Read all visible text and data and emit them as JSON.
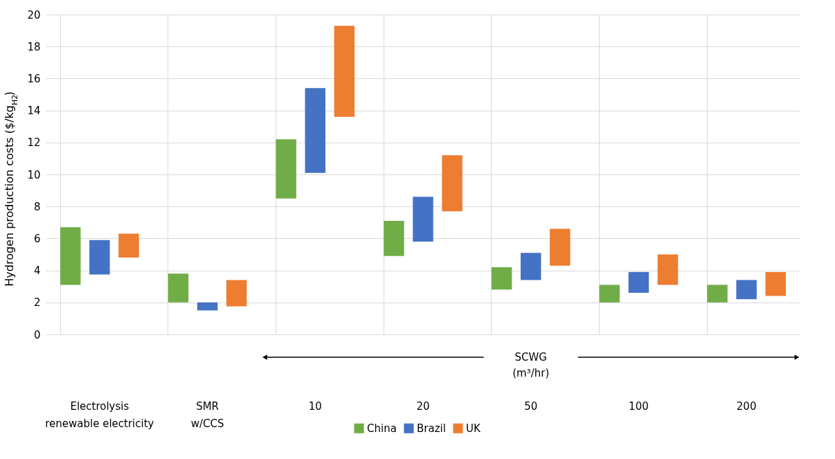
{
  "chart_data": {
    "type": "bar",
    "ylabel": "Hydrogen production costs ($/kg$_{H2}$)",
    "categories": [
      "Electrolysis renewable electricity",
      "SMR w/CCS",
      "10",
      "20",
      "50",
      "100",
      "200"
    ],
    "series": [
      {
        "name": "China",
        "color": "#70ad47",
        "base": [
          3.1,
          2.0,
          8.5,
          4.9,
          2.8,
          2.0,
          2.0
        ],
        "values": [
          3.6,
          1.8,
          3.7,
          2.2,
          1.4,
          1.1,
          1.1
        ]
      },
      {
        "name": "Brazil",
        "color": "#4472c4",
        "base": [
          3.75,
          1.5,
          10.1,
          5.8,
          3.4,
          2.6,
          2.2
        ],
        "values": [
          2.15,
          0.5,
          5.3,
          2.8,
          1.7,
          1.3,
          1.2
        ]
      },
      {
        "name": "UK",
        "color": "#ed7d31",
        "base": [
          4.8,
          1.75,
          13.6,
          7.7,
          4.3,
          3.1,
          2.4
        ],
        "values": [
          1.5,
          1.65,
          5.7,
          3.5,
          2.3,
          1.9,
          1.5
        ]
      }
    ],
    "annotations": [
      "SCWG (m³/hr)"
    ],
    "ylim": [
      0,
      20
    ],
    "yticks": [
      0,
      2,
      4,
      6,
      8,
      10,
      12,
      14,
      16,
      18,
      20
    ],
    "grid": true,
    "legend": "bottom"
  }
}
